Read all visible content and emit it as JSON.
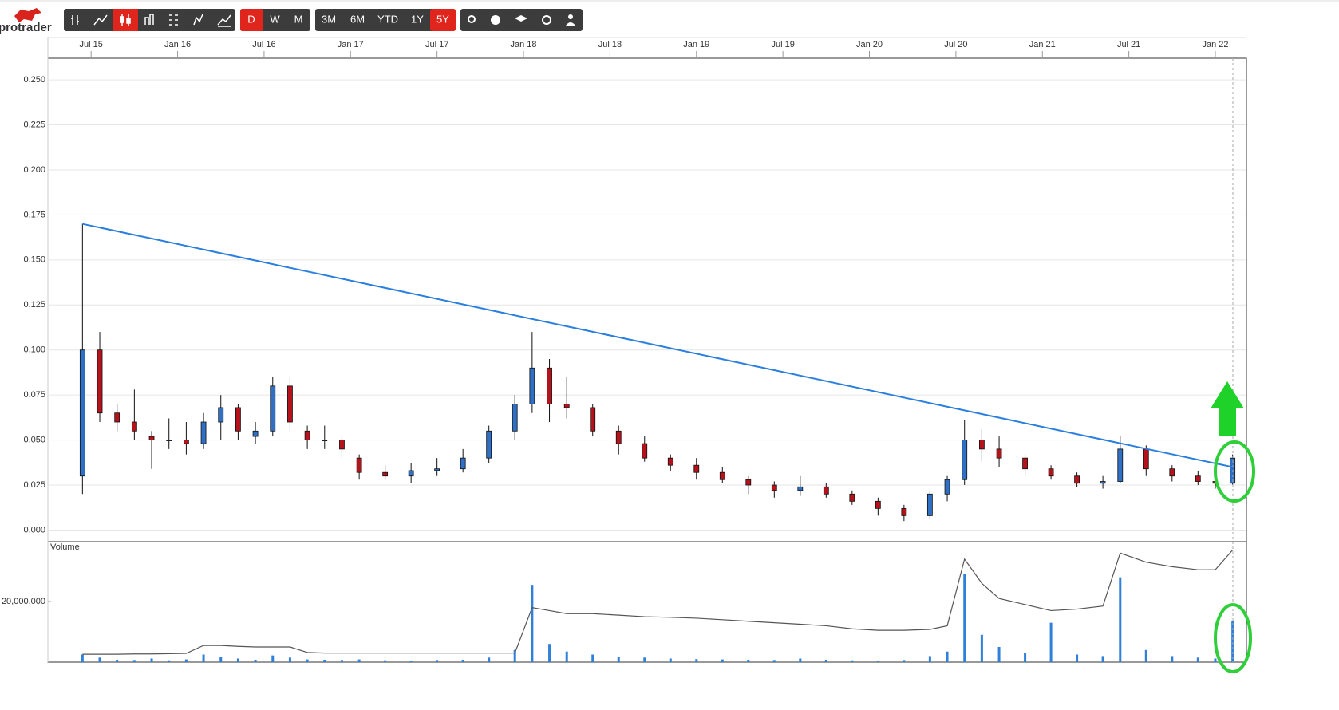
{
  "toolbar": {
    "logo": "protrader",
    "periods": [
      "D",
      "W",
      "M"
    ],
    "ranges": [
      "3M",
      "6M",
      "YTD",
      "1Y",
      "5Y"
    ]
  },
  "chart_data": {
    "type": "candlestick",
    "x": [
      2015.45,
      2015.55,
      2015.65,
      2015.75,
      2015.85,
      2015.95,
      2016.05,
      2016.15,
      2016.25,
      2016.35,
      2016.45,
      2016.55,
      2016.65,
      2016.75,
      2016.85,
      2016.95,
      2017.05,
      2017.2,
      2017.35,
      2017.5,
      2017.65,
      2017.8,
      2017.95,
      2018.05,
      2018.15,
      2018.25,
      2018.4,
      2018.55,
      2018.7,
      2018.85,
      2019.0,
      2019.15,
      2019.3,
      2019.45,
      2019.6,
      2019.75,
      2019.9,
      2020.05,
      2020.2,
      2020.35,
      2020.45,
      2020.55,
      2020.65,
      2020.75,
      2020.9,
      2021.05,
      2021.2,
      2021.35,
      2021.45,
      2021.6,
      2021.75,
      2021.9,
      2022.0,
      2022.1
    ],
    "open": [
      0.03,
      0.1,
      0.065,
      0.06,
      0.052,
      0.05,
      0.05,
      0.048,
      0.06,
      0.068,
      0.052,
      0.055,
      0.08,
      0.055,
      0.05,
      0.05,
      0.04,
      0.032,
      0.03,
      0.033,
      0.034,
      0.04,
      0.055,
      0.07,
      0.09,
      0.07,
      0.068,
      0.055,
      0.048,
      0.04,
      0.036,
      0.032,
      0.028,
      0.025,
      0.022,
      0.024,
      0.02,
      0.016,
      0.012,
      0.008,
      0.02,
      0.028,
      0.05,
      0.045,
      0.04,
      0.034,
      0.03,
      0.026,
      0.027,
      0.045,
      0.034,
      0.03,
      0.027,
      0.026
    ],
    "high": [
      0.17,
      0.11,
      0.07,
      0.078,
      0.055,
      0.062,
      0.06,
      0.065,
      0.075,
      0.07,
      0.06,
      0.085,
      0.085,
      0.058,
      0.058,
      0.052,
      0.042,
      0.036,
      0.037,
      0.04,
      0.045,
      0.058,
      0.075,
      0.11,
      0.095,
      0.085,
      0.07,
      0.058,
      0.052,
      0.042,
      0.04,
      0.035,
      0.03,
      0.027,
      0.03,
      0.026,
      0.022,
      0.018,
      0.014,
      0.022,
      0.03,
      0.061,
      0.056,
      0.052,
      0.042,
      0.036,
      0.032,
      0.03,
      0.052,
      0.047,
      0.036,
      0.033,
      0.03,
      0.042
    ],
    "low": [
      0.02,
      0.06,
      0.055,
      0.05,
      0.034,
      0.045,
      0.042,
      0.045,
      0.05,
      0.05,
      0.048,
      0.052,
      0.055,
      0.045,
      0.045,
      0.04,
      0.028,
      0.028,
      0.026,
      0.03,
      0.032,
      0.037,
      0.05,
      0.065,
      0.06,
      0.062,
      0.052,
      0.042,
      0.038,
      0.033,
      0.028,
      0.026,
      0.02,
      0.018,
      0.019,
      0.018,
      0.014,
      0.008,
      0.005,
      0.006,
      0.016,
      0.025,
      0.038,
      0.035,
      0.03,
      0.028,
      0.024,
      0.023,
      0.026,
      0.03,
      0.027,
      0.025,
      0.023,
      0.025
    ],
    "close": [
      0.1,
      0.065,
      0.06,
      0.055,
      0.05,
      0.05,
      0.048,
      0.06,
      0.068,
      0.055,
      0.055,
      0.08,
      0.06,
      0.05,
      0.05,
      0.045,
      0.032,
      0.03,
      0.033,
      0.034,
      0.04,
      0.055,
      0.07,
      0.09,
      0.07,
      0.068,
      0.055,
      0.048,
      0.04,
      0.036,
      0.032,
      0.028,
      0.025,
      0.022,
      0.024,
      0.02,
      0.016,
      0.012,
      0.008,
      0.02,
      0.028,
      0.05,
      0.045,
      0.04,
      0.034,
      0.03,
      0.026,
      0.027,
      0.045,
      0.034,
      0.03,
      0.027,
      0.026,
      0.04
    ],
    "up_color": "#2f6fc4",
    "down_color": "#b5121b",
    "xlim": [
      2015.25,
      2022.18
    ],
    "xticks": [
      {
        "value": 2015.5,
        "label": "Jul 15"
      },
      {
        "value": 2016.0,
        "label": "Jan 16"
      },
      {
        "value": 2016.5,
        "label": "Jul 16"
      },
      {
        "value": 2017.0,
        "label": "Jan 17"
      },
      {
        "value": 2017.5,
        "label": "Jul 17"
      },
      {
        "value": 2018.0,
        "label": "Jan 18"
      },
      {
        "value": 2018.5,
        "label": "Jul 18"
      },
      {
        "value": 2019.0,
        "label": "Jan 19"
      },
      {
        "value": 2019.5,
        "label": "Jul 19"
      },
      {
        "value": 2020.0,
        "label": "Jan 20"
      },
      {
        "value": 2020.5,
        "label": "Jul 20"
      },
      {
        "value": 2021.0,
        "label": "Jan 21"
      },
      {
        "value": 2021.5,
        "label": "Jul 21"
      },
      {
        "value": 2022.0,
        "label": "Jan 22"
      }
    ],
    "ylim": [
      -0.006,
      0.262
    ],
    "yticks": [
      {
        "value": 0,
        "label": "0.000"
      },
      {
        "value": 0.025,
        "label": "0.025"
      },
      {
        "value": 0.05,
        "label": "0.050"
      },
      {
        "value": 0.075,
        "label": "0.075"
      },
      {
        "value": 0.1,
        "label": "0.100"
      },
      {
        "value": 0.125,
        "label": "0.125"
      },
      {
        "value": 0.15,
        "label": "0.150"
      },
      {
        "value": 0.175,
        "label": "0.175"
      },
      {
        "value": 0.2,
        "label": "0.200"
      },
      {
        "value": 0.225,
        "label": "0.225"
      },
      {
        "value": 0.25,
        "label": "0.250"
      }
    ],
    "grid": true,
    "trendline": {
      "x": [
        2015.45,
        2022.1
      ],
      "y": [
        0.17,
        0.035
      ],
      "color": "#2a7fde"
    },
    "volume": {
      "title": "Volume",
      "color": "#2f80d8",
      "values": [
        2500000,
        1500000,
        800000,
        700000,
        1200000,
        600000,
        900000,
        2500000,
        1800000,
        1200000,
        800000,
        2200000,
        1500000,
        900000,
        800000,
        700000,
        900000,
        600000,
        500000,
        700000,
        800000,
        1500000,
        4000000,
        25500000,
        6000000,
        3500000,
        2500000,
        1800000,
        1500000,
        1200000,
        1000000,
        900000,
        800000,
        700000,
        1200000,
        800000,
        600000,
        500000,
        700000,
        2000000,
        3500000,
        29000000,
        9000000,
        5000000,
        3000000,
        13000000,
        2500000,
        2000000,
        28000000,
        4000000,
        2000000,
        1500000,
        1200000,
        13700000
      ],
      "ylim": [
        0,
        39500000
      ],
      "yticks": [
        {
          "value": 20000000,
          "label": "20,000,000"
        }
      ],
      "line_color": "#555555",
      "line_values": [
        2600000,
        2600000,
        2600000,
        2700000,
        2700000,
        2800000,
        2900000,
        5500000,
        5500000,
        5200000,
        5000000,
        5000000,
        5000000,
        3200000,
        3000000,
        3000000,
        3000000,
        3000000,
        3000000,
        3000000,
        3000000,
        3000000,
        3000000,
        18000000,
        17000000,
        16000000,
        16000000,
        15500000,
        15000000,
        14800000,
        14500000,
        14000000,
        13500000,
        13000000,
        12500000,
        12000000,
        11000000,
        10500000,
        10500000,
        10800000,
        12000000,
        34000000,
        26000000,
        21000000,
        19000000,
        17000000,
        17500000,
        18500000,
        36000000,
        33000000,
        31500000,
        30500000,
        30500000,
        37000000
      ]
    }
  }
}
